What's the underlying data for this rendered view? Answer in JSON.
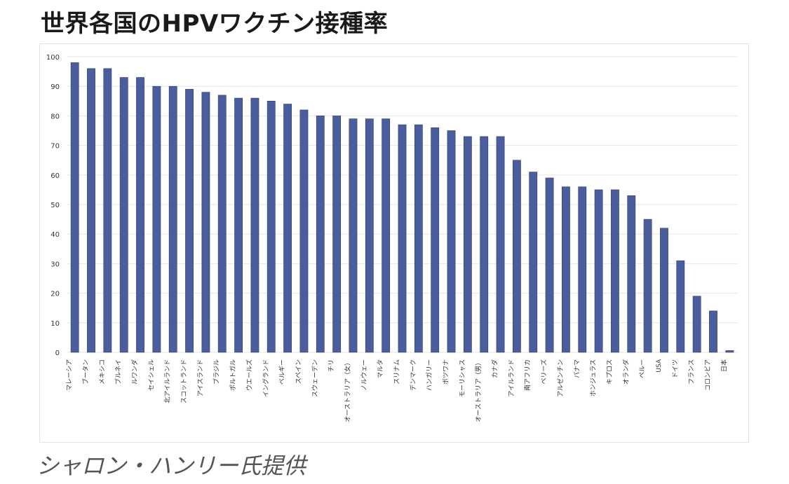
{
  "page": {
    "title": "世界各国のHPVワクチン接種率",
    "caption": "シャロン・ハンリー氏提供"
  },
  "colors": {
    "bar": "#4a5d9c",
    "bar_edge": "#2f3d72",
    "grid": "#e6e6e6",
    "axis_text": "#333333"
  },
  "chart_data": {
    "type": "bar",
    "title": "世界各国のHPVワクチン接種率",
    "xlabel": "",
    "ylabel": "",
    "ylim": [
      0,
      100
    ],
    "yticks": [
      0,
      10,
      20,
      30,
      40,
      50,
      60,
      70,
      80,
      90,
      100
    ],
    "grid": true,
    "categories": [
      "マレーシア",
      "ブータン",
      "メキシコ",
      "ブルネイ",
      "ルワンダ",
      "セイシェル",
      "北アイルランド",
      "スコットランド",
      "アイスランド",
      "ブラジル",
      "ポルトガル",
      "ウエールズ",
      "イングランド",
      "ベルギー",
      "スペイン",
      "スウェーデン",
      "チリ",
      "オーストラリア（女）",
      "ノルウェー",
      "マルタ",
      "スリナム",
      "デンマーク",
      "ハンガリー",
      "ボツワナ",
      "モーリシャス",
      "オーストラリア（男）",
      "カナダ",
      "アイルランド",
      "南アフリカ",
      "ベリーズ",
      "アルゼンチン",
      "パナマ",
      "ホンジュラス",
      "キプロス",
      "オランダ",
      "ペルー",
      "USA",
      "ドイツ",
      "フランス",
      "コロンビア",
      "日本"
    ],
    "values": [
      98,
      96,
      96,
      93,
      93,
      90,
      90,
      89,
      88,
      87,
      86,
      86,
      85,
      84,
      82,
      80,
      80,
      79,
      79,
      79,
      77,
      77,
      76,
      75,
      73,
      73,
      73,
      65,
      61,
      59,
      56,
      56,
      55,
      55,
      53,
      45,
      42,
      31,
      19,
      14,
      0.6
    ]
  }
}
